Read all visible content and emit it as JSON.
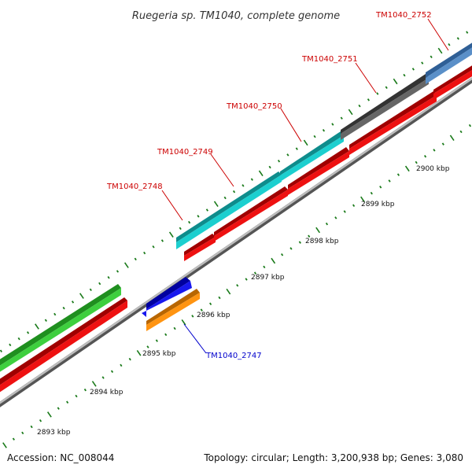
{
  "title": "Ruegeria sp. TM1040, complete genome",
  "accession": "Accession: NC_008044",
  "summary": "Topology: circular; Length: 3,200,938 bp; Genes: 3,080",
  "kbp_labels": [
    "2893 kbp",
    "2894 kbp",
    "2895 kbp",
    "2896 kbp",
    "2897 kbp",
    "2898 kbp",
    "2899 kbp",
    "2900 kbp"
  ],
  "genes": [
    {
      "id": "TM1040_2747",
      "color": "#0000cc"
    },
    {
      "id": "TM1040_2748",
      "color": "#cc0000"
    },
    {
      "id": "TM1040_2749",
      "color": "#cc0000"
    },
    {
      "id": "TM1040_2750",
      "color": "#cc0000"
    },
    {
      "id": "TM1040_2751",
      "color": "#cc0000"
    },
    {
      "id": "TM1040_2752",
      "color": "#cc0000"
    }
  ],
  "colors": {
    "green": "#3ecf3e",
    "red": "#ee1111",
    "cyan": "#1ccfcf",
    "gray": "#666666",
    "steelblue": "#5a8fc8",
    "blue": "#1818ee",
    "orange": "#ff9411",
    "ticks": "#1a7a1a",
    "backbone": "#888888"
  }
}
